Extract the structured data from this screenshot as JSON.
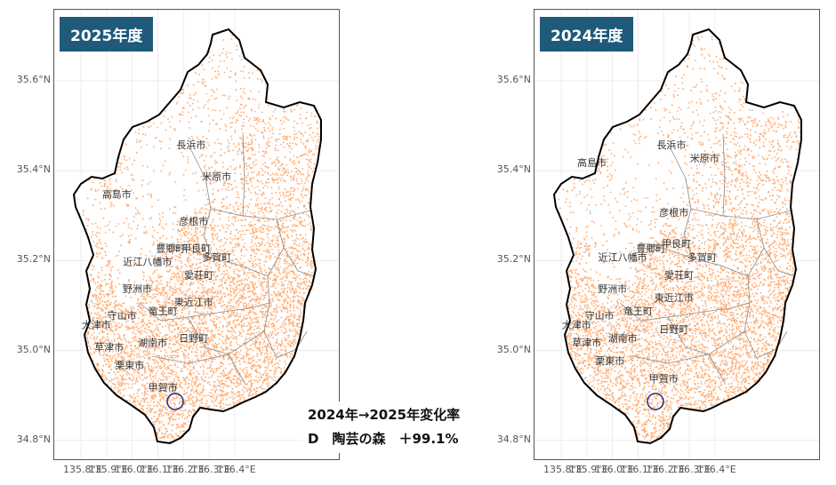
{
  "panels": [
    {
      "id": "left",
      "badge": "2025年度",
      "cities": [
        {
          "name": "長浜市",
          "lon": 36.23,
          "lat": 35.45
        },
        {
          "name": "米原市",
          "lon": 36.33,
          "lat": 35.38
        },
        {
          "name": "高島市",
          "lon": 35.94,
          "lat": 35.34
        },
        {
          "name": "彦根市",
          "lon": 36.24,
          "lat": 35.28
        },
        {
          "name": "甲良町",
          "lon": 36.25,
          "lat": 35.22
        },
        {
          "name": "豊郷町",
          "lon": 36.15,
          "lat": 35.22
        },
        {
          "name": "多賀町",
          "lon": 36.33,
          "lat": 35.2
        },
        {
          "name": "近江八幡市",
          "lon": 36.06,
          "lat": 35.19
        },
        {
          "name": "愛荘町",
          "lon": 36.26,
          "lat": 35.16
        },
        {
          "name": "野洲市",
          "lon": 36.02,
          "lat": 35.13
        },
        {
          "name": "東近江市",
          "lon": 36.24,
          "lat": 35.1
        },
        {
          "name": "竜王町",
          "lon": 36.12,
          "lat": 35.08
        },
        {
          "name": "守山市",
          "lon": 35.96,
          "lat": 35.07
        },
        {
          "name": "大津市",
          "lon": 35.86,
          "lat": 35.05
        },
        {
          "name": "日野町",
          "lon": 36.24,
          "lat": 35.02
        },
        {
          "name": "湖南市",
          "lon": 36.08,
          "lat": 35.01
        },
        {
          "name": "草津市",
          "lon": 35.91,
          "lat": 35.0
        },
        {
          "name": "栗東市",
          "lon": 35.99,
          "lat": 34.96
        },
        {
          "name": "甲賀市",
          "lon": 36.12,
          "lat": 34.91
        }
      ]
    },
    {
      "id": "right",
      "badge": "2024年度",
      "cities": [
        {
          "name": "長浜市",
          "lon": 36.23,
          "lat": 35.45
        },
        {
          "name": "米原市",
          "lon": 36.36,
          "lat": 35.42
        },
        {
          "name": "高島市",
          "lon": 35.92,
          "lat": 35.41
        },
        {
          "name": "彦根市",
          "lon": 36.24,
          "lat": 35.3
        },
        {
          "name": "甲良町",
          "lon": 36.25,
          "lat": 35.23
        },
        {
          "name": "豊郷町",
          "lon": 36.15,
          "lat": 35.22
        },
        {
          "name": "多賀町",
          "lon": 36.35,
          "lat": 35.2
        },
        {
          "name": "近江八幡市",
          "lon": 36.04,
          "lat": 35.2
        },
        {
          "name": "愛荘町",
          "lon": 36.26,
          "lat": 35.16
        },
        {
          "name": "野洲市",
          "lon": 36.0,
          "lat": 35.13
        },
        {
          "name": "東近江市",
          "lon": 36.24,
          "lat": 35.11
        },
        {
          "name": "竜王町",
          "lon": 36.1,
          "lat": 35.08
        },
        {
          "name": "守山市",
          "lon": 35.95,
          "lat": 35.07
        },
        {
          "name": "大津市",
          "lon": 35.86,
          "lat": 35.05
        },
        {
          "name": "日野町",
          "lon": 36.24,
          "lat": 35.04
        },
        {
          "name": "湖南市",
          "lon": 36.04,
          "lat": 35.02
        },
        {
          "name": "草津市",
          "lon": 35.9,
          "lat": 35.01
        },
        {
          "name": "栗東市",
          "lon": 35.99,
          "lat": 34.97
        },
        {
          "name": "甲賀市",
          "lon": 36.2,
          "lat": 34.93
        }
      ]
    }
  ],
  "axes": {
    "y_ticks": [
      "35.6°N",
      "35.4°N",
      "35.2°N",
      "35.0°N",
      "34.8°N"
    ],
    "y_values": [
      35.6,
      35.4,
      35.2,
      35.0,
      34.8
    ],
    "x_ticks": [
      "135.8°E",
      "135.9°E",
      "136.0°E",
      "136.1°E",
      "136.2°E",
      "136.3°E",
      "136.4°E"
    ],
    "x_values": [
      35.8,
      35.9,
      36.0,
      36.1,
      36.2,
      36.3,
      36.4
    ]
  },
  "point_color": "#ff6a00",
  "annotation": {
    "line1": "2024年→2025年変化率",
    "line2": "D　陶芸の森　＋99.1%"
  }
}
